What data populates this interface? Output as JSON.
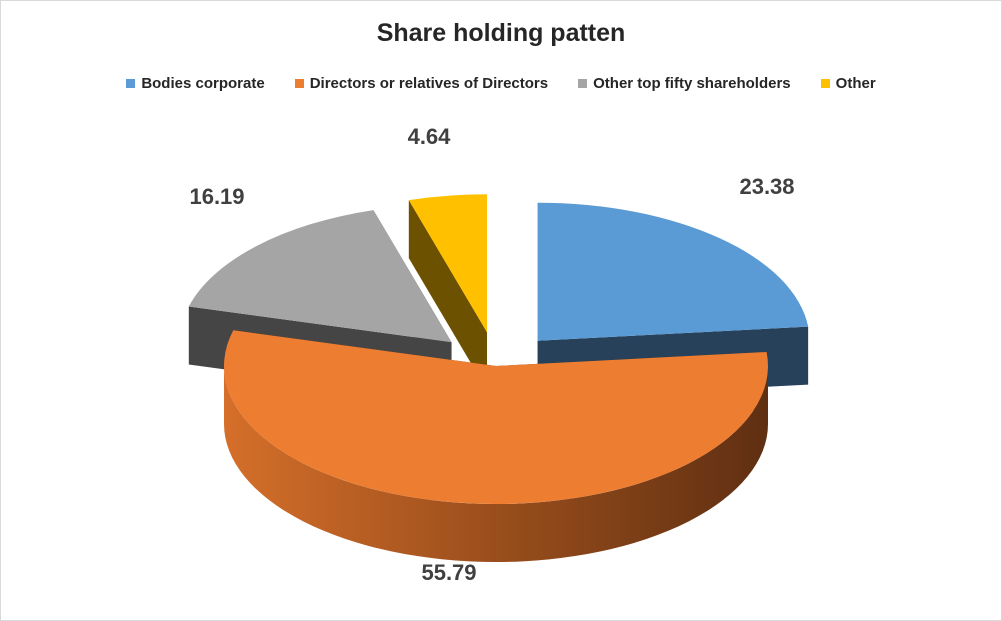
{
  "chart_data": {
    "type": "pie",
    "title": "Share holding patten",
    "legend_position": "top",
    "style": "3d-exploded",
    "slices": [
      {
        "name": "Bodies corporate",
        "value": 23.38,
        "label": "23.38",
        "color": "#5b9bd5"
      },
      {
        "name": "Directors or relatives of Directors",
        "value": 55.79,
        "label": "55.79",
        "color": "#ed7d31"
      },
      {
        "name": "Other top fifty shareholders",
        "value": 16.19,
        "label": "16.19",
        "color": "#a5a5a5"
      },
      {
        "name": "Other",
        "value": 4.64,
        "label": "4.64",
        "color": "#ffc000"
      }
    ]
  }
}
